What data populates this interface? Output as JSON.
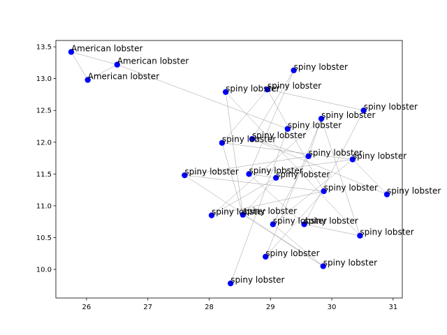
{
  "chart_data": {
    "type": "scatter",
    "title": "",
    "xlabel": "",
    "ylabel": "",
    "xlim": [
      25.5,
      31.15
    ],
    "ylim": [
      9.55,
      13.6
    ],
    "xticks": [
      26,
      27,
      28,
      29,
      30,
      31
    ],
    "yticks": [
      10.0,
      10.5,
      11.0,
      11.5,
      12.0,
      12.5,
      13.0,
      13.5
    ],
    "grid": false,
    "point_color": "#0000ff",
    "edge_color": "#999999",
    "points": [
      {
        "x": 25.75,
        "y": 13.42,
        "label": "American lobster"
      },
      {
        "x": 26.5,
        "y": 13.22,
        "label": "American lobster"
      },
      {
        "x": 26.02,
        "y": 12.98,
        "label": "American lobster"
      },
      {
        "x": 29.38,
        "y": 13.13,
        "label": "spiny lobster"
      },
      {
        "x": 28.95,
        "y": 12.83,
        "label": "spiny lobster"
      },
      {
        "x": 28.27,
        "y": 12.79,
        "label": "spiny lobster"
      },
      {
        "x": 30.52,
        "y": 12.5,
        "label": "spiny lobster"
      },
      {
        "x": 29.83,
        "y": 12.37,
        "label": "spiny lobster"
      },
      {
        "x": 29.28,
        "y": 12.21,
        "label": "spiny lobster"
      },
      {
        "x": 28.7,
        "y": 12.05,
        "label": "spiny lobster"
      },
      {
        "x": 28.21,
        "y": 11.99,
        "label": "spiny lobster"
      },
      {
        "x": 29.62,
        "y": 11.78,
        "label": "spiny lobster"
      },
      {
        "x": 30.34,
        "y": 11.73,
        "label": "spiny lobster"
      },
      {
        "x": 28.65,
        "y": 11.5,
        "label": "spiny lobster"
      },
      {
        "x": 27.6,
        "y": 11.48,
        "label": "spiny lobster"
      },
      {
        "x": 29.09,
        "y": 11.44,
        "label": "spiny lobster"
      },
      {
        "x": 29.87,
        "y": 11.23,
        "label": "spiny lobster"
      },
      {
        "x": 30.9,
        "y": 11.18,
        "label": "spiny lobster"
      },
      {
        "x": 28.04,
        "y": 10.85,
        "label": "spiny lobster"
      },
      {
        "x": 28.55,
        "y": 10.86,
        "label": "spiny lobster"
      },
      {
        "x": 29.04,
        "y": 10.71,
        "label": "spiny lobster"
      },
      {
        "x": 29.55,
        "y": 10.71,
        "label": "spiny lobster"
      },
      {
        "x": 30.46,
        "y": 10.53,
        "label": "spiny lobster"
      },
      {
        "x": 28.92,
        "y": 10.2,
        "label": "spiny lobster"
      },
      {
        "x": 29.86,
        "y": 10.05,
        "label": "spiny lobster"
      },
      {
        "x": 28.35,
        "y": 9.78,
        "label": "spiny lobster"
      }
    ],
    "edges": [
      [
        0,
        1
      ],
      [
        0,
        2
      ],
      [
        1,
        2
      ],
      [
        1,
        8
      ],
      [
        3,
        9
      ],
      [
        3,
        13
      ],
      [
        4,
        6
      ],
      [
        4,
        10
      ],
      [
        4,
        16
      ],
      [
        5,
        19
      ],
      [
        5,
        22
      ],
      [
        6,
        21
      ],
      [
        7,
        11
      ],
      [
        7,
        18
      ],
      [
        7,
        22
      ],
      [
        7,
        23
      ],
      [
        8,
        25
      ],
      [
        9,
        11
      ],
      [
        9,
        17
      ],
      [
        10,
        12
      ],
      [
        10,
        19
      ],
      [
        11,
        14
      ],
      [
        11,
        20
      ],
      [
        12,
        13
      ],
      [
        12,
        17
      ],
      [
        12,
        20
      ],
      [
        13,
        15
      ],
      [
        13,
        21
      ],
      [
        14,
        16
      ],
      [
        14,
        24
      ],
      [
        15,
        18
      ],
      [
        15,
        19
      ],
      [
        16,
        18
      ],
      [
        16,
        23
      ],
      [
        19,
        24
      ],
      [
        20,
        24
      ],
      [
        21,
        22
      ]
    ]
  }
}
